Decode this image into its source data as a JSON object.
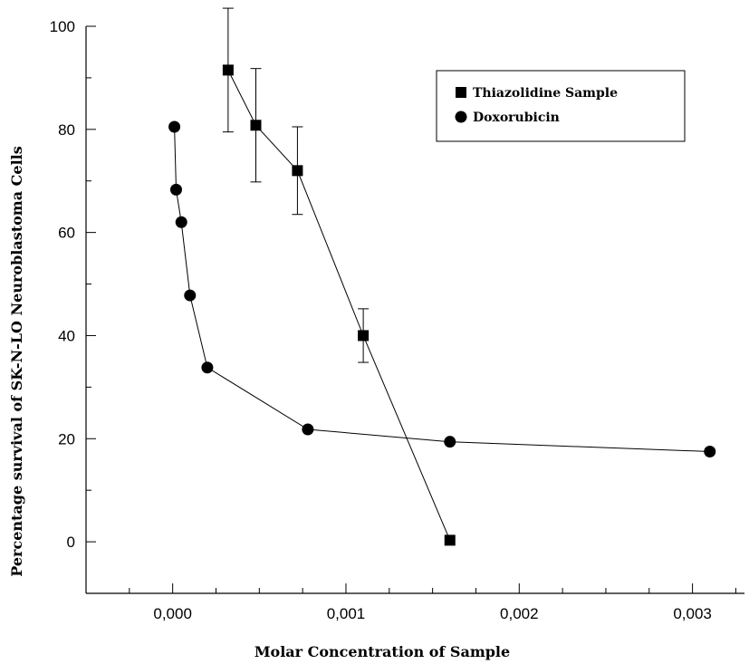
{
  "chart_data": {
    "type": "scatter",
    "title": "",
    "xlabel": "Molar Concentration of Sample",
    "ylabel": "Percentage survival of SK-N-LO Neuroblastoma Cells",
    "xlim": [
      -0.0005,
      0.0033
    ],
    "ylim": [
      -10,
      100
    ],
    "x_ticks": [
      0,
      0.001,
      0.002,
      0.003
    ],
    "x_tick_labels": [
      "0,000",
      "0,001",
      "0,002",
      "0,003"
    ],
    "x_minor_ticks": [
      -0.00025,
      0.00025,
      0.0005,
      0.00075,
      0.00125,
      0.0015,
      0.00175,
      0.00225,
      0.0025,
      0.00275,
      0.00325
    ],
    "y_ticks": [
      0,
      20,
      40,
      60,
      80,
      100
    ],
    "y_tick_labels": [
      "0",
      "20",
      "40",
      "60",
      "80",
      "100"
    ],
    "y_minor_ticks": [
      10,
      30,
      50,
      70,
      90
    ],
    "grid": false,
    "legend_position": "top-right",
    "series": [
      {
        "name": "Thiazolidine Sample",
        "marker": "square",
        "color": "#000000",
        "x": [
          0.00032,
          0.00048,
          0.00072,
          0.0011,
          0.0016
        ],
        "y": [
          91.5,
          80.8,
          72,
          40,
          0.3
        ],
        "yerr": [
          12,
          11,
          8.5,
          5.2,
          0
        ]
      },
      {
        "name": "Doxorubicin",
        "marker": "circle",
        "color": "#000000",
        "x": [
          1e-05,
          2e-05,
          5e-05,
          0.0001,
          0.0002,
          0.00078,
          0.0016,
          0.0031
        ],
        "y": [
          80.5,
          68.3,
          62,
          47.8,
          33.8,
          21.8,
          19.4,
          17.5
        ],
        "yerr": [
          0,
          0,
          0,
          0,
          0,
          0,
          0,
          0
        ]
      }
    ]
  }
}
